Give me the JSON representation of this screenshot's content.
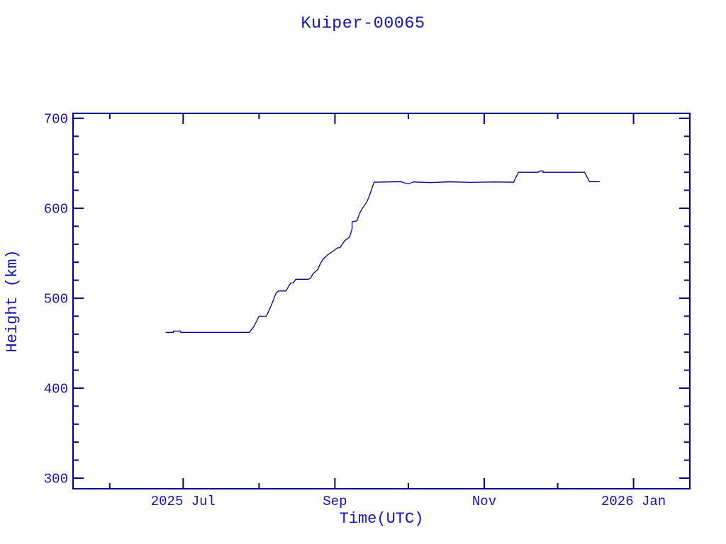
{
  "chart_data": {
    "type": "line",
    "title": "Kuiper-00065",
    "xlabel": "Time(UTC)",
    "ylabel": "Height (km)",
    "x_range": [
      "2025-05-17",
      "2026-01-24"
    ],
    "y_range": [
      288.2,
      705.5
    ],
    "x_major_ticks": [
      {
        "date": "2025-07-01",
        "label": "2025 Jul"
      },
      {
        "date": "2025-09-01",
        "label": "Sep"
      },
      {
        "date": "2025-11-01",
        "label": "Nov"
      },
      {
        "date": "2026-01-01",
        "label": "2026 Jan"
      }
    ],
    "x_minor_ticks": [
      "2025-06-01",
      "2025-08-01",
      "2025-10-01",
      "2025-12-01"
    ],
    "y_major_ticks": [
      300,
      400,
      500,
      600,
      700
    ],
    "y_minor_ticks": [
      320,
      340,
      360,
      380,
      420,
      440,
      460,
      480,
      520,
      540,
      560,
      580,
      620,
      640,
      660,
      680
    ],
    "grid": false,
    "legend": null,
    "colors": {
      "background": "#ffffff",
      "axes": "#00008b",
      "line": "#00008b",
      "text": "#1414aa"
    },
    "series": [
      {
        "name": "Kuiper-00065 height (km)",
        "points": [
          [
            "2025-06-24",
            462
          ],
          [
            "2025-06-27",
            462
          ],
          [
            "2025-06-27",
            463.5
          ],
          [
            "2025-06-30",
            463.5
          ],
          [
            "2025-06-30",
            462
          ],
          [
            "2025-07-28",
            462
          ],
          [
            "2025-07-30",
            469
          ],
          [
            "2025-08-01",
            480
          ],
          [
            "2025-08-04",
            480
          ],
          [
            "2025-08-05",
            486
          ],
          [
            "2025-08-06",
            492
          ],
          [
            "2025-08-07",
            499
          ],
          [
            "2025-08-08",
            506
          ],
          [
            "2025-08-09",
            508
          ],
          [
            "2025-08-12",
            508
          ],
          [
            "2025-08-13",
            513
          ],
          [
            "2025-08-14",
            517
          ],
          [
            "2025-08-15",
            517
          ],
          [
            "2025-08-16",
            521
          ],
          [
            "2025-08-21",
            521
          ],
          [
            "2025-08-22",
            522
          ],
          [
            "2025-08-23",
            527
          ],
          [
            "2025-08-25",
            532
          ],
          [
            "2025-08-26",
            538
          ],
          [
            "2025-08-27",
            543
          ],
          [
            "2025-08-29",
            548
          ],
          [
            "2025-08-31",
            552
          ],
          [
            "2025-09-02",
            556
          ],
          [
            "2025-09-03",
            556
          ],
          [
            "2025-09-04",
            560
          ],
          [
            "2025-09-05",
            564
          ],
          [
            "2025-09-07",
            568
          ],
          [
            "2025-09-08",
            577
          ],
          [
            "2025-09-08",
            585
          ],
          [
            "2025-09-10",
            586
          ],
          [
            "2025-09-11",
            594
          ],
          [
            "2025-09-12",
            599
          ],
          [
            "2025-09-13",
            603
          ],
          [
            "2025-09-14",
            607
          ],
          [
            "2025-09-15",
            613
          ],
          [
            "2025-09-16",
            621
          ],
          [
            "2025-09-17",
            629
          ],
          [
            "2025-09-28",
            629.5
          ],
          [
            "2025-10-01",
            627
          ],
          [
            "2025-10-03",
            629.3
          ],
          [
            "2025-10-10",
            628.6
          ],
          [
            "2025-10-18",
            629.4
          ],
          [
            "2025-10-26",
            628.8
          ],
          [
            "2025-11-05",
            629.2
          ],
          [
            "2025-11-13",
            629
          ],
          [
            "2025-11-15",
            640
          ],
          [
            "2025-11-23",
            640
          ],
          [
            "2025-11-24",
            641.5
          ],
          [
            "2025-11-25",
            641.5
          ],
          [
            "2025-11-25",
            640
          ],
          [
            "2025-12-12",
            640
          ],
          [
            "2025-12-14",
            629.5
          ],
          [
            "2025-12-18",
            629.5
          ]
        ]
      }
    ]
  }
}
